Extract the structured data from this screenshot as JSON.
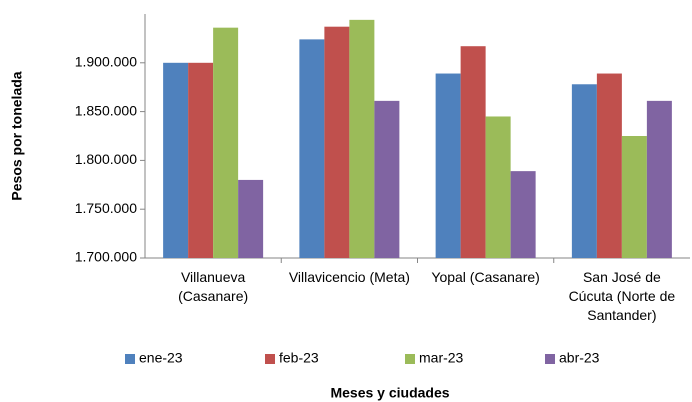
{
  "chart_data": {
    "type": "bar",
    "x_label": "Meses y ciudades",
    "y_label": "Pesos por tonelada",
    "categories": [
      "Villanueva (Casanare)",
      "Villavicencio (Meta)",
      "Yopal (Casanare)",
      "San José de Cúcuta (Norte de Santander)"
    ],
    "series": [
      {
        "name": "ene-23",
        "color": "#4f81bd",
        "values": [
          1900000,
          1924000,
          1889000,
          1878000
        ]
      },
      {
        "name": "feb-23",
        "color": "#c0504d",
        "values": [
          1900000,
          1937000,
          1917000,
          1889000
        ]
      },
      {
        "name": "mar-23",
        "color": "#9bbb59",
        "values": [
          1936000,
          1944000,
          1845000,
          1825000
        ]
      },
      {
        "name": "abr-23",
        "color": "#8064a2",
        "values": [
          1780000,
          1861000,
          1789000,
          1861000
        ]
      }
    ],
    "ylim": [
      1700000,
      1950000
    ],
    "yticks": [
      {
        "value": 1700000,
        "label": "1.700.000"
      },
      {
        "value": 1750000,
        "label": "1.750.000"
      },
      {
        "value": 1800000,
        "label": "1.800.000"
      },
      {
        "value": 1850000,
        "label": "1.850.000"
      },
      {
        "value": 1900000,
        "label": "1.900.000"
      }
    ],
    "legend": "bottom",
    "grid": false
  }
}
